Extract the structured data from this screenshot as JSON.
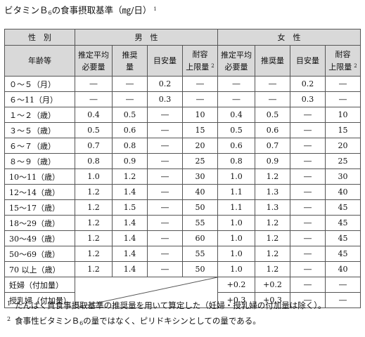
{
  "title": {
    "prefix": "ビタミンＢ",
    "sub": "6",
    "suffix": "の食事摂取基準（㎎/日）",
    "note": "1"
  },
  "header": {
    "sex_label": "性　別",
    "male_label": "男　性",
    "female_label": "女　性",
    "age_label": "年齢等",
    "col_ear": [
      "推定平均",
      "必要量"
    ],
    "col_rda": [
      "推奨",
      "量"
    ],
    "col_ai": "目安量",
    "col_ul": [
      "耐容",
      "上限量"
    ],
    "col_ul_note": "2",
    "col_ear_f": [
      "推定平均",
      "必要量"
    ],
    "col_rda_f": "推奨量",
    "col_ai_f": "目安量",
    "col_ul_f": [
      "耐容",
      "上限量"
    ],
    "col_ul_f_note": "2"
  },
  "rows": [
    {
      "age": "０～５（月）",
      "m": [
        "―",
        "―",
        "0.2",
        "―"
      ],
      "f": [
        "―",
        "―",
        "0.2",
        "―"
      ]
    },
    {
      "age": "６～11（月）",
      "m": [
        "―",
        "―",
        "0.3",
        "―"
      ],
      "f": [
        "―",
        "―",
        "0.3",
        "―"
      ]
    },
    {
      "age": "１～２（歳）",
      "m": [
        "0.4",
        "0.5",
        "―",
        "10"
      ],
      "f": [
        "0.4",
        "0.5",
        "―",
        "10"
      ]
    },
    {
      "age": "３～５（歳）",
      "m": [
        "0.5",
        "0.6",
        "―",
        "15"
      ],
      "f": [
        "0.5",
        "0.6",
        "―",
        "15"
      ]
    },
    {
      "age": "６～７（歳）",
      "m": [
        "0.7",
        "0.8",
        "―",
        "20"
      ],
      "f": [
        "0.6",
        "0.7",
        "―",
        "20"
      ]
    },
    {
      "age": "８～９（歳）",
      "m": [
        "0.8",
        "0.9",
        "―",
        "25"
      ],
      "f": [
        "0.8",
        "0.9",
        "―",
        "25"
      ]
    },
    {
      "age": "10～11（歳）",
      "m": [
        "1.0",
        "1.2",
        "―",
        "30"
      ],
      "f": [
        "1.0",
        "1.2",
        "―",
        "30"
      ]
    },
    {
      "age": "12～14（歳）",
      "m": [
        "1.2",
        "1.4",
        "―",
        "40"
      ],
      "f": [
        "1.1",
        "1.3",
        "―",
        "40"
      ]
    },
    {
      "age": "15～17（歳）",
      "m": [
        "1.2",
        "1.5",
        "―",
        "50"
      ],
      "f": [
        "1.1",
        "1.3",
        "―",
        "45"
      ]
    },
    {
      "age": "18～29（歳）",
      "m": [
        "1.2",
        "1.4",
        "―",
        "55"
      ],
      "f": [
        "1.0",
        "1.2",
        "―",
        "45"
      ]
    },
    {
      "age": "30～49（歳）",
      "m": [
        "1.2",
        "1.4",
        "―",
        "60"
      ],
      "f": [
        "1.0",
        "1.2",
        "―",
        "45"
      ]
    },
    {
      "age": "50～69（歳）",
      "m": [
        "1.2",
        "1.4",
        "―",
        "55"
      ],
      "f": [
        "1.0",
        "1.2",
        "―",
        "45"
      ]
    },
    {
      "age": "70 以上（歳）",
      "m": [
        "1.2",
        "1.4",
        "―",
        "50"
      ],
      "f": [
        "1.0",
        "1.2",
        "―",
        "40"
      ]
    },
    {
      "age": "妊婦（付加量）",
      "f": [
        "+0.2",
        "+0.2",
        "―",
        "―"
      ]
    },
    {
      "age": "授乳婦（付加量）",
      "f": [
        "+0.3",
        "+0.3",
        "―",
        "―"
      ]
    }
  ],
  "footnotes": [
    {
      "num": "1",
      "text": "たんぱく質食事摂取基準の推奨量を用いて算定した（妊婦・授乳婦の付加量は除く）。"
    },
    {
      "num": "2",
      "pre": "食事性ビタミンＢ",
      "sub": "6",
      "post": "の量ではなく、ピリドキシンとしての量である。"
    }
  ]
}
